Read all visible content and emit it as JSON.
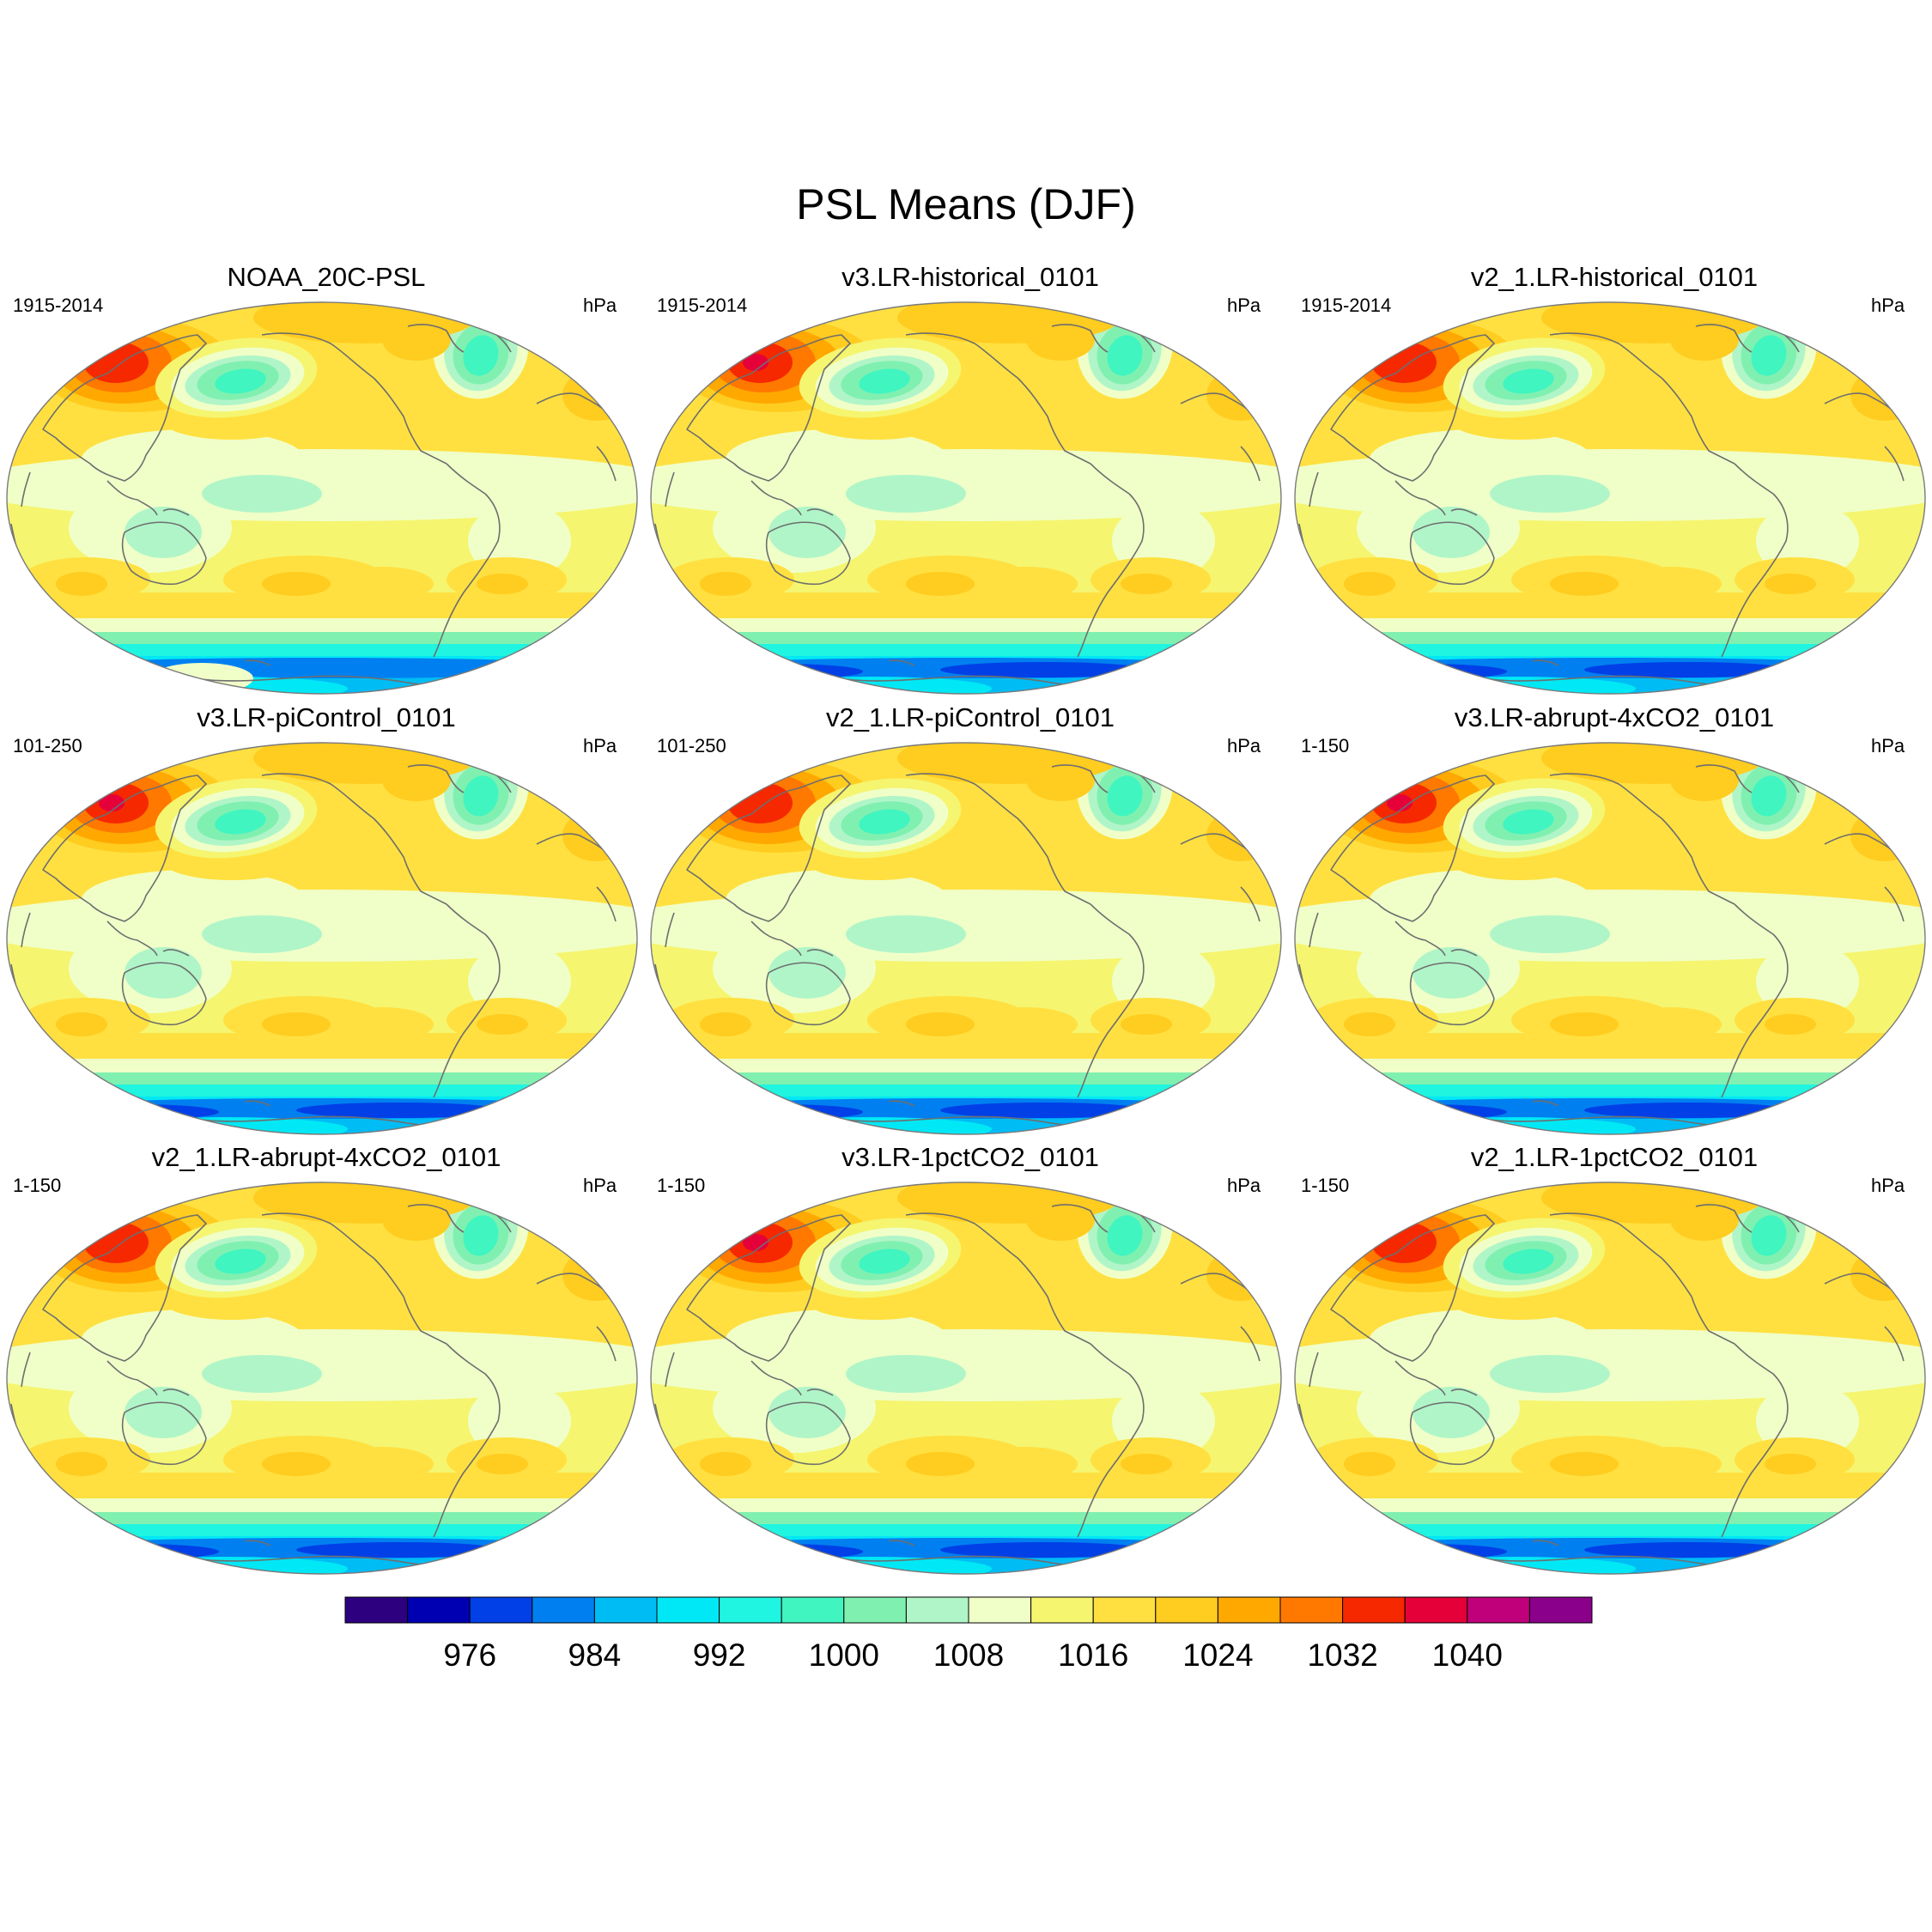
{
  "figure": {
    "title": "PSL Means (DJF)"
  },
  "panels": [
    {
      "title": "NOAA_20C-PSL",
      "period": "1915-2014",
      "units": "hPa"
    },
    {
      "title": "v3.LR-historical_0101",
      "period": "1915-2014",
      "units": "hPa"
    },
    {
      "title": "v2_1.LR-historical_0101",
      "period": "1915-2014",
      "units": "hPa"
    },
    {
      "title": "v3.LR-piControl_0101",
      "period": "101-250",
      "units": "hPa"
    },
    {
      "title": "v2_1.LR-piControl_0101",
      "period": "101-250",
      "units": "hPa"
    },
    {
      "title": "v3.LR-abrupt-4xCO2_0101",
      "period": "1-150",
      "units": "hPa"
    },
    {
      "title": "v2_1.LR-abrupt-4xCO2_0101",
      "period": "1-150",
      "units": "hPa"
    },
    {
      "title": "v3.LR-1pctCO2_0101",
      "period": "1-150",
      "units": "hPa"
    },
    {
      "title": "v2_1.LR-1pctCO2_0101",
      "period": "1-150",
      "units": "hPa"
    }
  ],
  "colorbar": {
    "colors": [
      "#2d0080",
      "#0000b3",
      "#0040e6",
      "#0080f0",
      "#00bcf5",
      "#00e8f5",
      "#1ff5e0",
      "#40f5c0",
      "#80f0b0",
      "#b0f5c8",
      "#f0ffc8",
      "#f5f570",
      "#ffe040",
      "#ffcc20",
      "#ffa800",
      "#ff7800",
      "#f52800",
      "#e6003a",
      "#c0007a",
      "#8a008a"
    ],
    "tick_labels": [
      "976",
      "984",
      "992",
      "1000",
      "1008",
      "1016",
      "1024",
      "1032",
      "1040"
    ]
  }
}
